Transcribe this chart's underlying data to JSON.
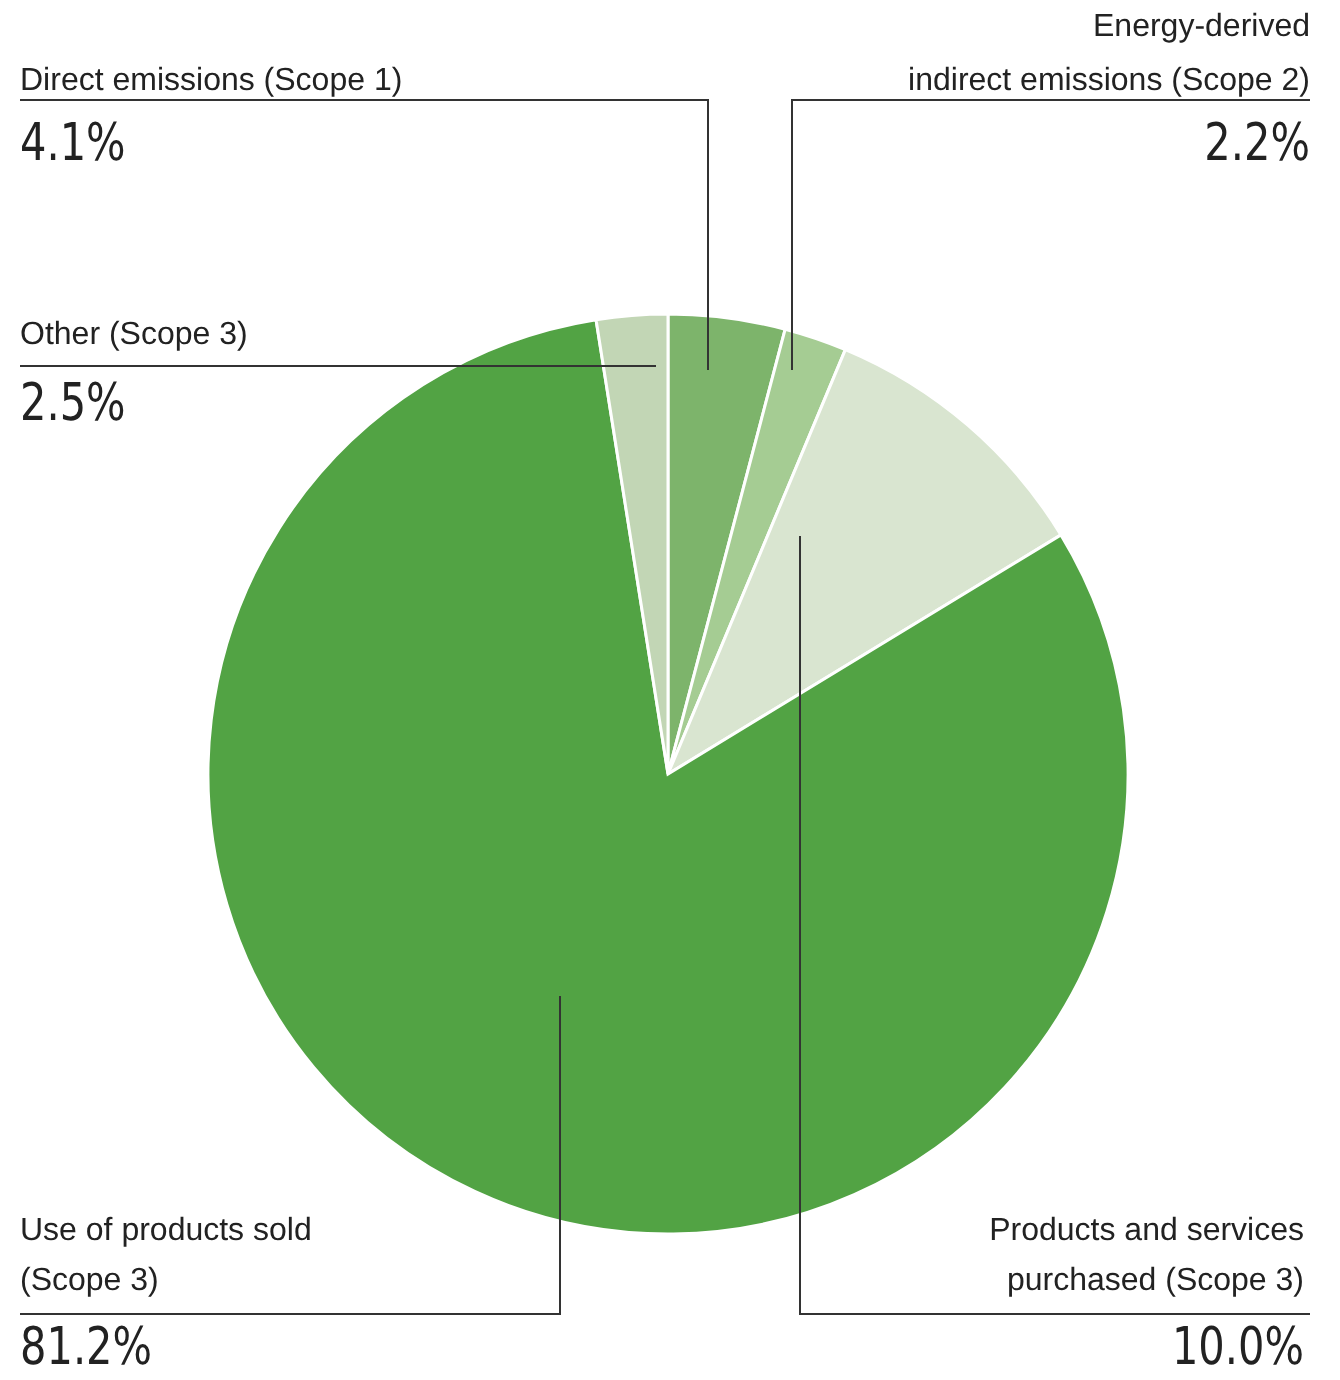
{
  "chart_data": {
    "type": "pie",
    "categories": [
      "Direct emissions (Scope 1)",
      "Energy-derived\nindirect emissions (Scope 2)",
      "Products and services\npurchased (Scope 3)",
      "Use of products sold\n(Scope 3)",
      "Other (Scope 3)"
    ],
    "values": [
      4.1,
      2.2,
      10.0,
      81.2,
      2.5
    ],
    "value_labels": [
      "4.1%",
      "2.2%",
      "10.0%",
      "81.2%",
      "2.5%"
    ],
    "colors": [
      "#7db46b",
      "#a5cc93",
      "#d9e5d0",
      "#52a344",
      "#c2d6b5"
    ]
  }
}
